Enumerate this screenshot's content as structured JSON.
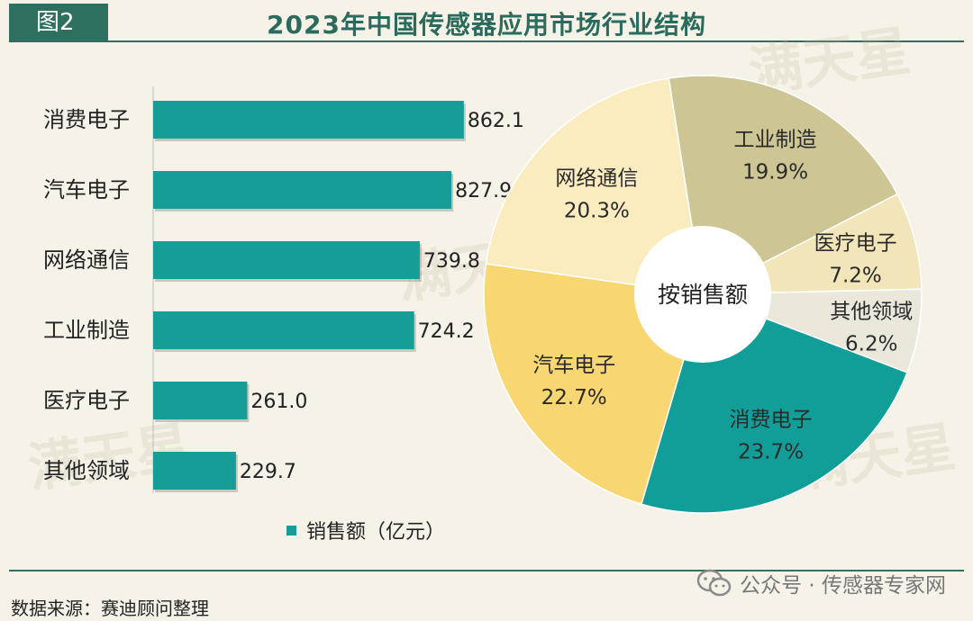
{
  "header": {
    "figure_label": "图2",
    "title": "2023年中国传感器应用市场行业结构"
  },
  "chart_data": [
    {
      "type": "bar",
      "orientation": "horizontal",
      "categories": [
        "消费电子",
        "汽车电子",
        "网络通信",
        "工业制造",
        "医疗电子",
        "其他领域"
      ],
      "values": [
        862.1,
        827.9,
        739.8,
        724.2,
        261.0,
        229.7
      ],
      "value_labels": [
        "862.1",
        "827.9",
        "739.8",
        "724.2",
        "261.0",
        "229.7"
      ],
      "legend": "销售额（亿元）",
      "legend_position": "bottom",
      "xlim": [
        0,
        1100
      ],
      "color": "#159e98"
    },
    {
      "type": "pie",
      "donut": true,
      "center_label": "按销售额",
      "slices": [
        {
          "label": "网络通信",
          "value": 20.3,
          "pct": "20.3%",
          "color": "#fbecc0"
        },
        {
          "label": "工业制造",
          "value": 19.9,
          "pct": "19.9%",
          "color": "#cdc594"
        },
        {
          "label": "医疗电子",
          "value": 7.2,
          "pct": "7.2%",
          "color": "#f2e5b9"
        },
        {
          "label": "其他领域",
          "value": 6.2,
          "pct": "6.2%",
          "color": "#ece7db"
        },
        {
          "label": "消费电子",
          "value": 23.7,
          "pct": "23.7%",
          "color": "#129e98"
        },
        {
          "label": "汽车电子",
          "value": 22.7,
          "pct": "22.7%",
          "color": "#f8d773"
        }
      ]
    }
  ],
  "footer": {
    "source": "数据来源：赛迪顾问整理",
    "wechat_label": "公众号 · 传感器专家网"
  },
  "watermark_text": "满天星"
}
